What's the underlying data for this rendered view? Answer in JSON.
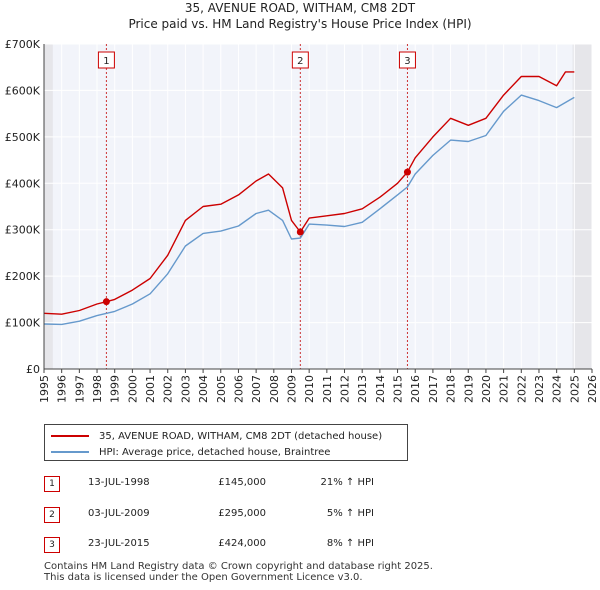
{
  "chart_data": {
    "type": "line",
    "title": "35, AVENUE ROAD, WITHAM, CM8 2DT",
    "subtitle": "Price paid vs. HM Land Registry's House Price Index (HPI)",
    "xlim": [
      1995,
      2026
    ],
    "ylim": [
      0,
      700000
    ],
    "x_ticks": [
      "1995",
      "1996",
      "1997",
      "1998",
      "1999",
      "2000",
      "2001",
      "2002",
      "2003",
      "2004",
      "2005",
      "2006",
      "2007",
      "2008",
      "2009",
      "2010",
      "2011",
      "2012",
      "2013",
      "2014",
      "2015",
      "2016",
      "2017",
      "2018",
      "2019",
      "2020",
      "2021",
      "2022",
      "2023",
      "2024",
      "2025",
      "2026"
    ],
    "y_ticks": [
      {
        "value": 0,
        "label": "£0"
      },
      {
        "value": 100000,
        "label": "£100K"
      },
      {
        "value": 200000,
        "label": "£200K"
      },
      {
        "value": 300000,
        "label": "£300K"
      },
      {
        "value": 400000,
        "label": "£400K"
      },
      {
        "value": 500000,
        "label": "£500K"
      },
      {
        "value": 600000,
        "label": "£600K"
      },
      {
        "value": 700000,
        "label": "£700K"
      }
    ],
    "series": [
      {
        "name": "35, AVENUE ROAD, WITHAM, CM8 2DT (detached house)",
        "color": "#cc0000",
        "points": [
          [
            1995.0,
            120000
          ],
          [
            1996.0,
            118000
          ],
          [
            1997.0,
            126000
          ],
          [
            1998.0,
            140000
          ],
          [
            1998.53,
            145000
          ],
          [
            1999.0,
            150000
          ],
          [
            2000.0,
            170000
          ],
          [
            2001.0,
            195000
          ],
          [
            2002.0,
            245000
          ],
          [
            2003.0,
            320000
          ],
          [
            2004.0,
            350000
          ],
          [
            2005.0,
            355000
          ],
          [
            2006.0,
            375000
          ],
          [
            2007.0,
            405000
          ],
          [
            2007.7,
            420000
          ],
          [
            2008.5,
            390000
          ],
          [
            2009.0,
            320000
          ],
          [
            2009.5,
            295000
          ],
          [
            2010.0,
            325000
          ],
          [
            2011.0,
            330000
          ],
          [
            2012.0,
            335000
          ],
          [
            2013.0,
            345000
          ],
          [
            2014.0,
            370000
          ],
          [
            2015.0,
            400000
          ],
          [
            2015.56,
            424000
          ],
          [
            2016.0,
            455000
          ],
          [
            2017.0,
            500000
          ],
          [
            2018.0,
            540000
          ],
          [
            2019.0,
            525000
          ],
          [
            2020.0,
            540000
          ],
          [
            2021.0,
            590000
          ],
          [
            2022.0,
            630000
          ],
          [
            2023.0,
            630000
          ],
          [
            2024.0,
            610000
          ],
          [
            2024.5,
            640000
          ],
          [
            2025.0,
            640000
          ]
        ]
      },
      {
        "name": "HPI: Average price, detached house, Braintree",
        "color": "#6699cc",
        "points": [
          [
            1995.0,
            97000
          ],
          [
            1996.0,
            96000
          ],
          [
            1997.0,
            103000
          ],
          [
            1998.0,
            115000
          ],
          [
            1999.0,
            124000
          ],
          [
            2000.0,
            140000
          ],
          [
            2001.0,
            162000
          ],
          [
            2002.0,
            205000
          ],
          [
            2003.0,
            265000
          ],
          [
            2004.0,
            292000
          ],
          [
            2005.0,
            297000
          ],
          [
            2006.0,
            308000
          ],
          [
            2007.0,
            335000
          ],
          [
            2007.7,
            342000
          ],
          [
            2008.5,
            320000
          ],
          [
            2009.0,
            280000
          ],
          [
            2009.5,
            282000
          ],
          [
            2010.0,
            312000
          ],
          [
            2011.0,
            310000
          ],
          [
            2012.0,
            307000
          ],
          [
            2013.0,
            316000
          ],
          [
            2014.0,
            345000
          ],
          [
            2015.0,
            375000
          ],
          [
            2015.56,
            392000
          ],
          [
            2016.0,
            420000
          ],
          [
            2017.0,
            460000
          ],
          [
            2018.0,
            493000
          ],
          [
            2019.0,
            490000
          ],
          [
            2020.0,
            503000
          ],
          [
            2021.0,
            555000
          ],
          [
            2022.0,
            590000
          ],
          [
            2023.0,
            578000
          ],
          [
            2024.0,
            563000
          ],
          [
            2025.0,
            585000
          ]
        ]
      }
    ],
    "markers": [
      {
        "label": "1",
        "x": 1998.53,
        "y": 145000
      },
      {
        "label": "2",
        "x": 2009.5,
        "y": 295000
      },
      {
        "label": "3",
        "x": 2015.56,
        "y": 424000
      }
    ],
    "shaded_ranges": [
      [
        1995.0,
        1995.5
      ],
      [
        2024.9,
        2026.0
      ]
    ],
    "legend_position": "bottom",
    "grid": true
  },
  "legend": {
    "property_label": "35, AVENUE ROAD, WITHAM, CM8 2DT (detached house)",
    "hpi_label": "HPI: Average price, detached house, Braintree"
  },
  "transactions": [
    {
      "num": "1",
      "date": "13-JUL-1998",
      "price": "£145,000",
      "hpi": "21% ↑ HPI"
    },
    {
      "num": "2",
      "date": "03-JUL-2009",
      "price": "£295,000",
      "hpi": "5% ↑ HPI"
    },
    {
      "num": "3",
      "date": "23-JUL-2015",
      "price": "£424,000",
      "hpi": "8% ↑ HPI"
    }
  ],
  "footer": {
    "line1": "Contains HM Land Registry data © Crown copyright and database right 2025.",
    "line2": "This data is licensed under the Open Government Licence v3.0."
  }
}
